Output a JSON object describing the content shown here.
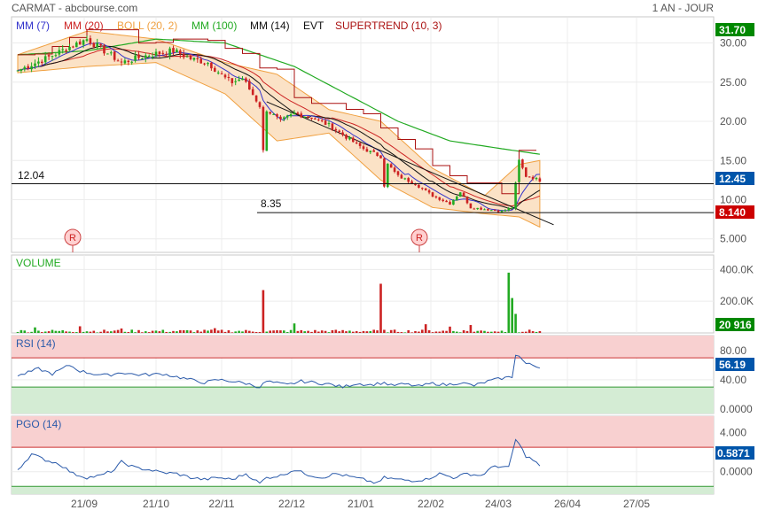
{
  "header": {
    "title": "CARMAT - abcbourse.com",
    "period": "1 AN - JOUR"
  },
  "colors": {
    "bull": "#22aa22",
    "bear": "#cc2222",
    "mm7": "#3333cc",
    "mm20": "#cc2222",
    "boll": "#f0a040",
    "mm100": "#22aa22",
    "mm14": "#111111",
    "evt": "#111111",
    "supertrend": "#aa1111",
    "rsi": "#2a5aaa",
    "pgo": "#2a5aaa",
    "label_last": "#0055aa",
    "label_high": "#008800",
    "label_low": "#cc0000"
  },
  "legend": [
    {
      "key": "mm7",
      "text": "MM (7)"
    },
    {
      "key": "mm20",
      "text": "MM (20)"
    },
    {
      "key": "boll",
      "text": "BOLL (20, 2)"
    },
    {
      "key": "mm100",
      "text": "MM (100)"
    },
    {
      "key": "mm14",
      "text": "MM (14)"
    },
    {
      "key": "evt",
      "text": "EVT"
    },
    {
      "key": "supertrend",
      "text": "SUPERTREND (10, 3)"
    }
  ],
  "badges": [
    "31.70",
    "12.45",
    "8.140",
    "20 916",
    "56.19",
    "0.5871"
  ],
  "markers": [
    "R",
    "R"
  ],
  "hlines": [
    "12.04",
    "8.35"
  ],
  "chart_data": [
    {
      "panel": "price",
      "type": "candlestick",
      "ylim": [
        3.5,
        33
      ],
      "yticks": [
        5,
        10,
        15,
        20,
        25,
        30
      ],
      "ytick_labels": [
        "5.000",
        "10.00",
        "15.00",
        "20.00",
        "25.00",
        "30.00"
      ],
      "xticks": [
        "21/09",
        "21/10",
        "22/11",
        "22/12",
        "21/01",
        "22/02",
        "24/03",
        "26/04",
        "27/05"
      ],
      "close_points": [
        [
          0,
          26.5
        ],
        [
          8,
          28
        ],
        [
          15,
          29.5
        ],
        [
          20,
          30.5
        ],
        [
          25,
          29
        ],
        [
          30,
          27.5
        ],
        [
          38,
          28.5
        ],
        [
          45,
          29
        ],
        [
          50,
          28
        ],
        [
          55,
          27.5
        ],
        [
          60,
          25.5
        ],
        [
          62,
          25
        ],
        [
          65,
          25.5
        ],
        [
          70,
          22
        ],
        [
          71,
          16.2
        ],
        [
          72,
          21.5
        ],
        [
          76,
          20
        ],
        [
          80,
          21
        ],
        [
          85,
          20.5
        ],
        [
          90,
          19.5
        ],
        [
          95,
          18
        ],
        [
          100,
          16.5
        ],
        [
          105,
          15.5
        ],
        [
          106,
          11.8
        ],
        [
          107,
          14.5
        ],
        [
          110,
          13
        ],
        [
          115,
          12
        ],
        [
          120,
          10.5
        ],
        [
          125,
          9.5
        ],
        [
          128,
          11
        ],
        [
          131,
          9
        ],
        [
          135,
          8.8
        ],
        [
          140,
          8.5
        ],
        [
          143,
          9
        ],
        [
          145,
          15
        ],
        [
          147,
          13
        ],
        [
          149,
          12.8
        ],
        [
          151,
          12.45
        ]
      ],
      "mm100_points": [
        [
          0,
          28.5
        ],
        [
          20,
          29
        ],
        [
          40,
          30.5
        ],
        [
          60,
          30
        ],
        [
          80,
          27
        ],
        [
          95,
          23.5
        ],
        [
          110,
          20
        ],
        [
          125,
          17.5
        ],
        [
          140,
          16.5
        ],
        [
          151,
          15.8
        ]
      ],
      "boll_upper_points": [
        [
          0,
          28.5
        ],
        [
          20,
          31.5
        ],
        [
          40,
          30.5
        ],
        [
          60,
          27.5
        ],
        [
          75,
          26
        ],
        [
          90,
          21.5
        ],
        [
          105,
          20
        ],
        [
          120,
          14
        ],
        [
          135,
          10.5
        ],
        [
          145,
          14.5
        ],
        [
          151,
          15
        ]
      ],
      "boll_lower_points": [
        [
          0,
          26.2
        ],
        [
          20,
          27
        ],
        [
          40,
          27.5
        ],
        [
          60,
          23.5
        ],
        [
          75,
          17.5
        ],
        [
          90,
          18.5
        ],
        [
          105,
          12.5
        ],
        [
          120,
          9
        ],
        [
          135,
          8.2
        ],
        [
          145,
          7.8
        ],
        [
          151,
          6.5
        ]
      ],
      "hlines": [
        12.04,
        8.35
      ],
      "last": 12.45,
      "high": 31.7,
      "low": 8.14
    },
    {
      "panel": "volume",
      "type": "bar",
      "ylim": [
        0,
        480000
      ],
      "yticks": [
        200000,
        400000
      ],
      "ytick_labels": [
        "200.0K",
        "400.0K"
      ],
      "spikes": [
        [
          5,
          35000
        ],
        [
          18,
          42000
        ],
        [
          30,
          28000
        ],
        [
          57,
          30000
        ],
        [
          71,
          270000
        ],
        [
          80,
          60000
        ],
        [
          105,
          310000
        ],
        [
          118,
          55000
        ],
        [
          125,
          40000
        ],
        [
          131,
          50000
        ],
        [
          142,
          380000
        ],
        [
          143,
          220000
        ],
        [
          144,
          120000
        ]
      ],
      "last": 20916
    },
    {
      "panel": "rsi",
      "title": "RSI (14)",
      "type": "line",
      "ylim": [
        -5,
        98
      ],
      "yticks": [
        0,
        40,
        80
      ],
      "ytick_labels": [
        "0.0000",
        "40.00",
        "80.00"
      ],
      "zones": [
        70,
        30
      ],
      "points": [
        [
          0,
          45
        ],
        [
          6,
          55
        ],
        [
          10,
          48
        ],
        [
          15,
          60
        ],
        [
          18,
          52
        ],
        [
          22,
          48
        ],
        [
          26,
          46
        ],
        [
          30,
          50
        ],
        [
          34,
          47
        ],
        [
          38,
          47
        ],
        [
          42,
          48
        ],
        [
          46,
          44
        ],
        [
          50,
          40
        ],
        [
          54,
          36
        ],
        [
          58,
          40
        ],
        [
          62,
          38
        ],
        [
          66,
          35
        ],
        [
          70,
          30
        ],
        [
          72,
          38
        ],
        [
          74,
          36
        ],
        [
          78,
          33
        ],
        [
          82,
          38
        ],
        [
          86,
          36
        ],
        [
          90,
          34
        ],
        [
          94,
          30
        ],
        [
          98,
          35
        ],
        [
          102,
          33
        ],
        [
          106,
          36
        ],
        [
          108,
          32
        ],
        [
          112,
          34
        ],
        [
          116,
          31
        ],
        [
          120,
          35
        ],
        [
          124,
          33
        ],
        [
          128,
          36
        ],
        [
          132,
          32
        ],
        [
          136,
          38
        ],
        [
          140,
          42
        ],
        [
          143,
          44
        ],
        [
          144,
          75
        ],
        [
          145,
          72
        ],
        [
          147,
          62
        ],
        [
          149,
          60
        ],
        [
          151,
          56
        ]
      ],
      "last": 56.19
    },
    {
      "panel": "pgo",
      "title": "PGO (14)",
      "type": "line",
      "ylim": [
        -2.2,
        5.5
      ],
      "yticks": [
        0,
        4
      ],
      "ytick_labels": [
        "0.0000",
        "4.000"
      ],
      "zones": [
        2.5,
        -1.5
      ],
      "points": [
        [
          0,
          0.2
        ],
        [
          4,
          1.8
        ],
        [
          8,
          1.2
        ],
        [
          12,
          0.8
        ],
        [
          16,
          -0.2
        ],
        [
          20,
          -0.6
        ],
        [
          24,
          -0.4
        ],
        [
          28,
          0.2
        ],
        [
          30,
          1
        ],
        [
          34,
          0.4
        ],
        [
          38,
          0.2
        ],
        [
          42,
          -0.1
        ],
        [
          46,
          -0.2
        ],
        [
          50,
          -0.6
        ],
        [
          54,
          -0.8
        ],
        [
          58,
          -0.6
        ],
        [
          62,
          -0.8
        ],
        [
          66,
          -0.2
        ],
        [
          70,
          -1.2
        ],
        [
          72,
          -0.6
        ],
        [
          76,
          -0.4
        ],
        [
          80,
          0.2
        ],
        [
          84,
          -0.3
        ],
        [
          88,
          -0.6
        ],
        [
          92,
          -0.2
        ],
        [
          96,
          -0.5
        ],
        [
          100,
          -0.8
        ],
        [
          104,
          -1.2
        ],
        [
          106,
          -0.6
        ],
        [
          110,
          -0.8
        ],
        [
          114,
          -0.9
        ],
        [
          118,
          -0.8
        ],
        [
          122,
          -0.2
        ],
        [
          126,
          -0.6
        ],
        [
          130,
          -0.2
        ],
        [
          134,
          -0.4
        ],
        [
          138,
          0.6
        ],
        [
          142,
          0.4
        ],
        [
          144,
          3.3
        ],
        [
          145,
          2.8
        ],
        [
          147,
          1.6
        ],
        [
          149,
          1.2
        ],
        [
          151,
          0.5871
        ]
      ],
      "last": 0.5871
    }
  ]
}
